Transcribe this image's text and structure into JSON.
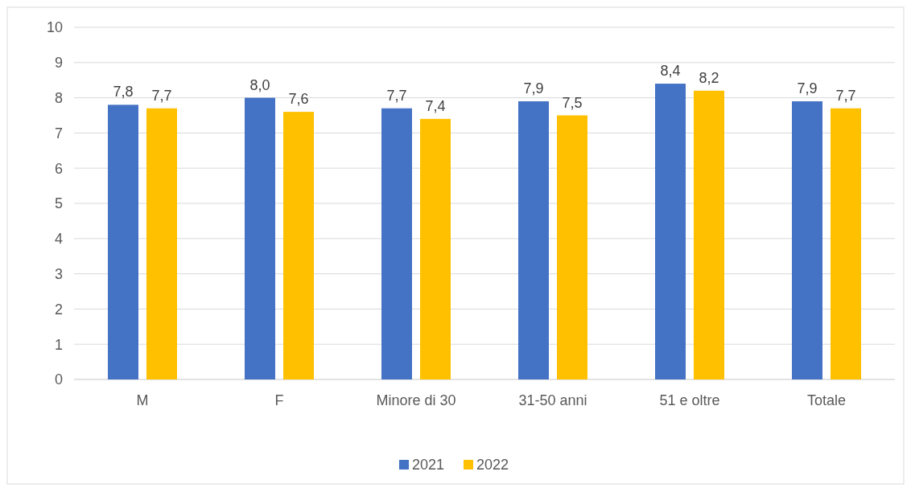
{
  "chart_data": {
    "type": "bar",
    "categories": [
      "M",
      "F",
      "Minore di 30",
      "31-50 anni",
      "51 e oltre",
      "Totale"
    ],
    "series": [
      {
        "name": "2021",
        "color": "#4472c4",
        "values": [
          7.8,
          8.0,
          7.7,
          7.9,
          8.4,
          7.9
        ],
        "value_labels": [
          "7,8",
          "8,0",
          "7,7",
          "7,9",
          "8,4",
          "7,9"
        ]
      },
      {
        "name": "2022",
        "color": "#ffc000",
        "values": [
          7.7,
          7.6,
          7.4,
          7.5,
          8.2,
          7.7
        ],
        "value_labels": [
          "7,7",
          "7,6",
          "7,4",
          "7,5",
          "8,2",
          "7,7"
        ]
      }
    ],
    "ylim": [
      0,
      10
    ],
    "yticks": [
      0,
      1,
      2,
      3,
      4,
      5,
      6,
      7,
      8,
      9,
      10
    ],
    "grid": "y",
    "legend": "bottom"
  }
}
